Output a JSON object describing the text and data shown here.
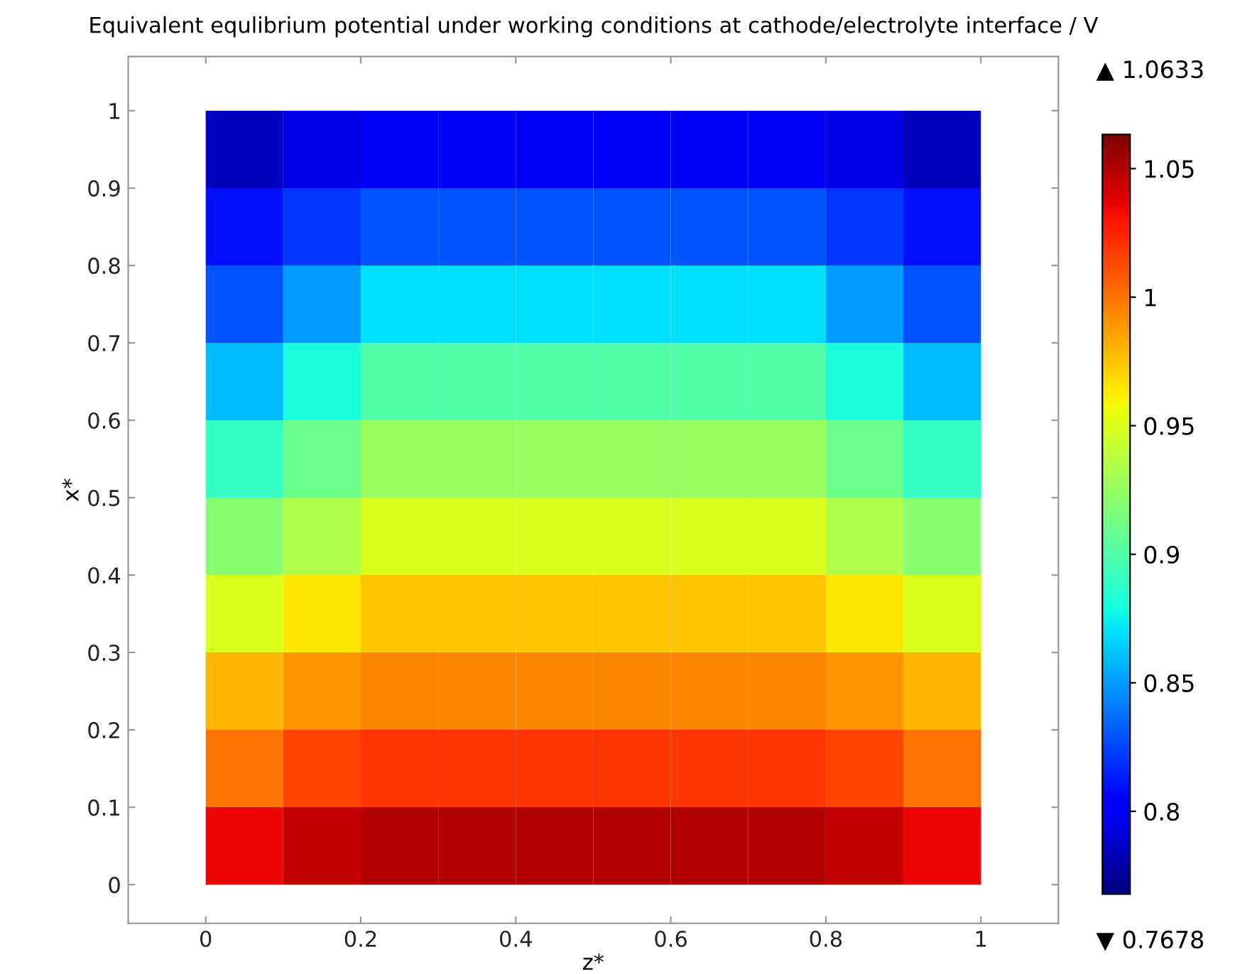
{
  "chart_data": {
    "type": "heatmap",
    "title": "Equivalent equlibrium potential under working conditions at cathode/electrolyte interface / V",
    "xlabel": "z*",
    "ylabel": "x*",
    "clabel": null,
    "x": [
      0.05,
      0.15,
      0.25,
      0.35,
      0.45,
      0.55,
      0.65,
      0.75,
      0.85,
      0.95
    ],
    "y": [
      0.95,
      0.85,
      0.75,
      0.65,
      0.55,
      0.45,
      0.35,
      0.25,
      0.15,
      0.05
    ],
    "cells": [
      [
        0.785,
        0.795,
        0.8,
        0.8,
        0.8,
        0.8,
        0.8,
        0.8,
        0.795,
        0.785
      ],
      [
        0.81,
        0.82,
        0.83,
        0.83,
        0.83,
        0.83,
        0.83,
        0.83,
        0.82,
        0.81
      ],
      [
        0.83,
        0.85,
        0.87,
        0.87,
        0.87,
        0.87,
        0.87,
        0.87,
        0.85,
        0.83
      ],
      [
        0.86,
        0.88,
        0.9,
        0.9,
        0.9,
        0.9,
        0.9,
        0.9,
        0.88,
        0.86
      ],
      [
        0.89,
        0.91,
        0.925,
        0.925,
        0.925,
        0.925,
        0.925,
        0.925,
        0.91,
        0.89
      ],
      [
        0.92,
        0.935,
        0.95,
        0.95,
        0.95,
        0.95,
        0.95,
        0.95,
        0.935,
        0.92
      ],
      [
        0.95,
        0.965,
        0.975,
        0.975,
        0.975,
        0.975,
        0.975,
        0.975,
        0.965,
        0.95
      ],
      [
        0.98,
        0.99,
        0.995,
        0.995,
        0.995,
        0.995,
        0.995,
        0.995,
        0.99,
        0.98
      ],
      [
        1.0,
        1.015,
        1.02,
        1.02,
        1.02,
        1.02,
        1.02,
        1.02,
        1.015,
        1.0
      ],
      [
        1.035,
        1.045,
        1.05,
        1.05,
        1.05,
        1.05,
        1.05,
        1.05,
        1.045,
        1.035
      ]
    ],
    "xlim": [
      -0.1,
      1.1
    ],
    "xticks": [
      0,
      0.2,
      0.4,
      0.6,
      0.8,
      1
    ],
    "ylim": [
      -0.05,
      1.07
    ],
    "yticks": [
      0,
      0.1,
      0.2,
      0.3,
      0.4,
      0.5,
      0.6,
      0.7,
      0.8,
      0.9,
      1
    ],
    "clim": [
      0.7678,
      1.0633
    ],
    "cticks": [
      0.8,
      0.85,
      0.9,
      0.95,
      1,
      1.05
    ],
    "annotations": [
      "▲ 1.0633",
      "▼ 0.7678"
    ],
    "grid": false
  }
}
